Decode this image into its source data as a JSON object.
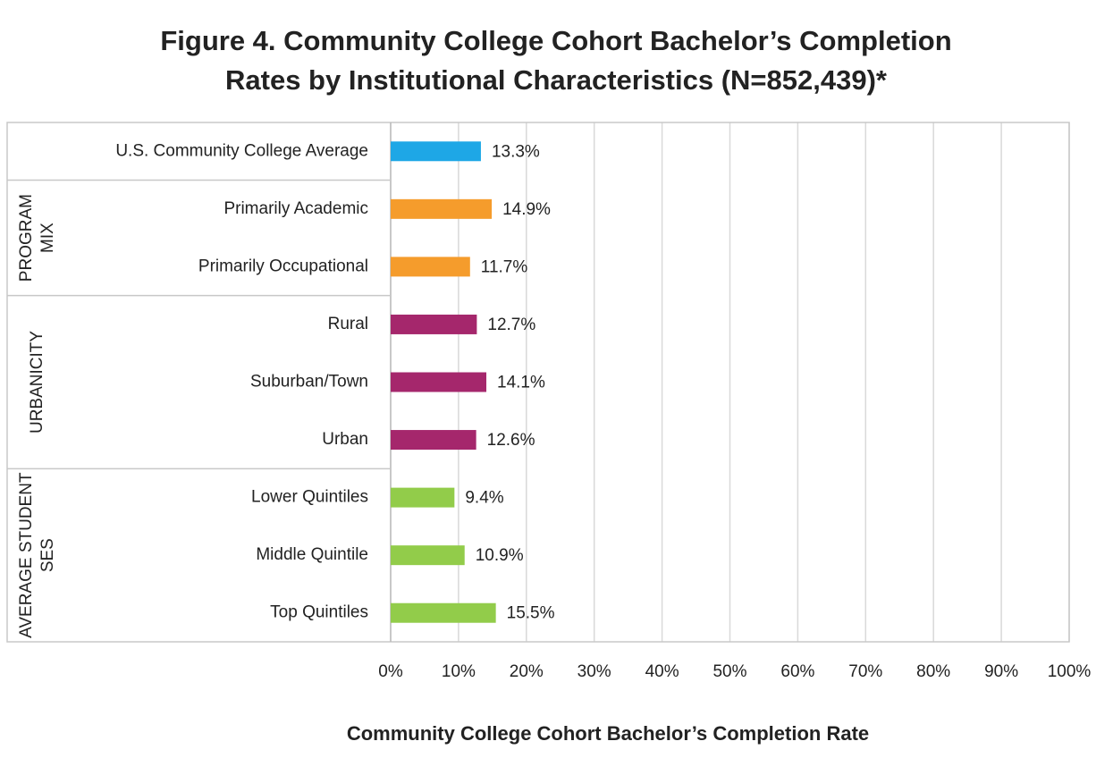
{
  "chart_data": {
    "type": "bar",
    "title": [
      "Figure 4. Community College Cohort Bachelor’s Completion",
      "Rates by Institutional Characteristics (N=852,439)*"
    ],
    "x_label": "Community College Cohort Bachelor’s Completion Rate",
    "groups": [
      {
        "categories": [
          "U.S. Community College Average"
        ],
        "values": [
          13.3
        ],
        "value_labels": [
          "13.3%"
        ],
        "color": "#1ea7e6"
      },
      {
        "label": [
          "PROGRAM",
          "MIX"
        ],
        "categories": [
          "Primarily Academic",
          "Primarily Occupational"
        ],
        "values": [
          14.9,
          11.7
        ],
        "value_labels": [
          "14.9%",
          "11.7%"
        ],
        "color": "#f59c2c"
      },
      {
        "label": [
          "URBANICITY"
        ],
        "categories": [
          "Rural",
          "Suburban/Town",
          "Urban"
        ],
        "values": [
          12.7,
          14.1,
          12.6
        ],
        "value_labels": [
          "12.7%",
          "14.1%",
          "12.6%"
        ],
        "color": "#a5276c"
      },
      {
        "label": [
          "AVERAGE STUDENT",
          "SES"
        ],
        "categories": [
          "Lower Quintiles",
          "Middle Quintile",
          "Top Quintiles"
        ],
        "values": [
          9.4,
          10.9,
          15.5
        ],
        "value_labels": [
          "9.4%",
          "10.9%",
          "15.5%"
        ],
        "color": "#92cc4a"
      }
    ],
    "xlim": [
      0,
      100
    ],
    "xticks": [
      {
        "value": 0,
        "label": "0%"
      },
      {
        "value": 10,
        "label": "10%"
      },
      {
        "value": 20,
        "label": "20%"
      },
      {
        "value": 30,
        "label": "30%"
      },
      {
        "value": 40,
        "label": "40%"
      },
      {
        "value": 50,
        "label": "50%"
      },
      {
        "value": 60,
        "label": "60%"
      },
      {
        "value": 70,
        "label": "70%"
      },
      {
        "value": 80,
        "label": "80%"
      },
      {
        "value": 90,
        "label": "90%"
      },
      {
        "value": 100,
        "label": "100%"
      }
    ],
    "grid": true
  }
}
